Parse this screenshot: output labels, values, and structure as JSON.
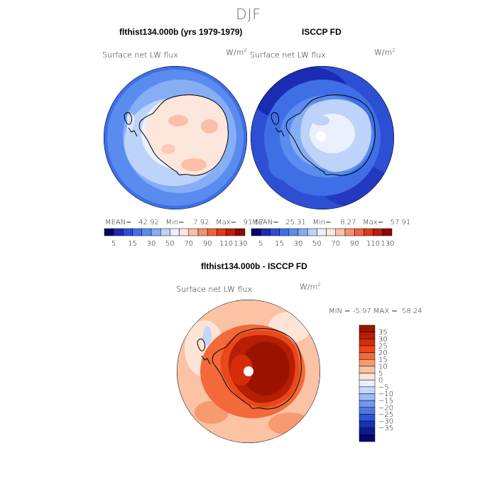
{
  "season": "DJF",
  "left_panel": {
    "title": "flthist134.000b (yrs 1979-1979)",
    "variable": "Surface net LW flux",
    "units": "W/m",
    "units_exp": "2",
    "mean_label": "MEAN=",
    "mean": "42.92",
    "min_label": "Min=",
    "min": "7.92",
    "max_label": "Max=",
    "max": "91.57"
  },
  "right_panel": {
    "title": "ISCCP FD",
    "variable": "Surface net LW flux",
    "units": "W/m",
    "units_exp": "2",
    "mean_label": "MEAN=",
    "mean": "25.31",
    "min_label": "Min=",
    "min": "8.27",
    "max_label": "Max=",
    "max": "57.91"
  },
  "shared_colorbar": {
    "colors": [
      "#08006b",
      "#1a2bb4",
      "#2d4fd3",
      "#3f6fe6",
      "#5a8cef",
      "#86aef5",
      "#bdd3fa",
      "#eaf0fd",
      "#fde6dc",
      "#fbbfa5",
      "#f7906f",
      "#f0633f",
      "#e03a1b",
      "#c01c08",
      "#8b0a00"
    ],
    "labels": [
      "5",
      "15",
      "30",
      "50",
      "70",
      "90",
      "110",
      "130"
    ]
  },
  "diff_panel": {
    "title": "flthist134.000b - ISCCP FD",
    "variable": "Surface net LW flux",
    "units": "W/m",
    "units_exp": "2",
    "min_label": "MIN =",
    "min": "-5.97",
    "max_label": "MAX =",
    "max": "58.24"
  },
  "diff_colorbar": {
    "colors": [
      "#9b1300",
      "#b81e02",
      "#d42d08",
      "#e8481a",
      "#f2693a",
      "#f79a6f",
      "#fbc2a4",
      "#fde4d6",
      "#eaf0fd",
      "#c3d6fb",
      "#9cbaf6",
      "#7098ee",
      "#4d78e3",
      "#2e55d1",
      "#1932b4",
      "#0d1b92",
      "#020870"
    ],
    "labels": [
      "35",
      "30",
      "25",
      "20",
      "15",
      "10",
      "5",
      "0",
      "−5",
      "−10",
      "−15",
      "−20",
      "−25",
      "−30",
      "−35"
    ]
  }
}
